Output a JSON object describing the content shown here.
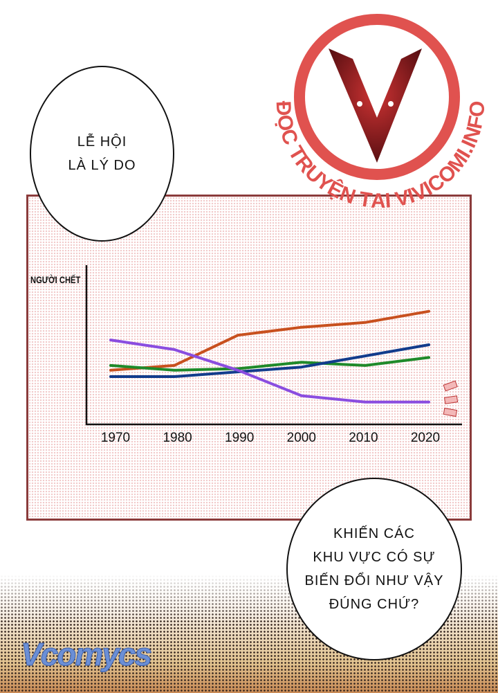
{
  "bubbles": {
    "top_left": [
      "LỄ HỘI",
      "LÀ LÝ DO"
    ],
    "bottom_right": [
      "KHIẾN CÁC",
      "KHU VỰC CÓ SỰ",
      "BIẾN ĐỔI NHƯ VẬY",
      "ĐÚNG CHỨ?"
    ]
  },
  "watermark": {
    "text": "ĐỌC TRUYỆN TẠI VIVICOMI.INFO",
    "color": "#e0524f"
  },
  "logo": {
    "text": "Vcomycs"
  },
  "chart_data": {
    "type": "line",
    "title": "",
    "ylabel": "NGƯỜI CHẾT",
    "xlabel": "",
    "x": [
      1970,
      1980,
      1990,
      2000,
      2010,
      2020
    ],
    "tick_labels": [
      "1970",
      "1980",
      "1990",
      "2000",
      "2010",
      "2020"
    ],
    "ylim": [
      0,
      100
    ],
    "y_ticks_shown": false,
    "grid": false,
    "legend": "none",
    "series": [
      {
        "color": "#c8501e",
        "values": [
          34,
          37,
          56,
          61,
          64,
          71
        ]
      },
      {
        "color": "#1f8a2a",
        "values": [
          37,
          34,
          35,
          39,
          37,
          42
        ]
      },
      {
        "color": "#123c8c",
        "values": [
          30,
          30,
          33,
          36,
          43,
          50
        ]
      },
      {
        "color": "#8a4de0",
        "values": [
          53,
          47,
          34,
          18,
          14,
          14
        ]
      }
    ]
  }
}
